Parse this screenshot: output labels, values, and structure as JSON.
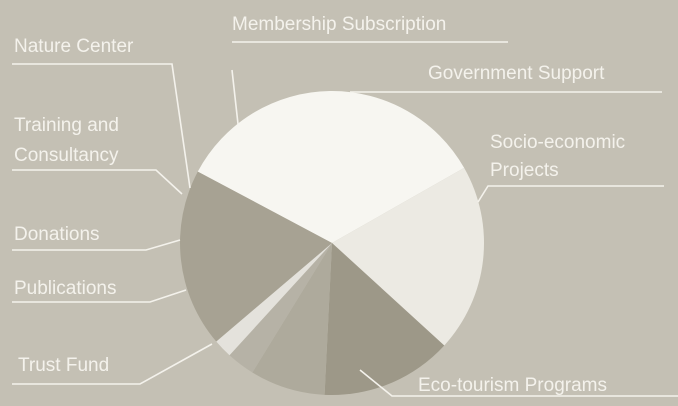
{
  "chart_data": {
    "type": "pie",
    "title": "",
    "colors": {
      "background": "#c4c0b4",
      "leader": "#f4f2ec",
      "label": "#f4f2ec"
    },
    "slices": [
      {
        "label": "Government Support",
        "value": 0,
        "color": "#ffffff"
      },
      {
        "label": "Socio-economic Projects",
        "value": 34,
        "color": "#f7f6f1"
      },
      {
        "label": "Eco-tourism Programs",
        "value": 20,
        "color": "#eceae3"
      },
      {
        "label": "Trust Fund",
        "value": 14,
        "color": "#9d9888"
      },
      {
        "label": "Publications",
        "value": 8,
        "color": "#aeaa9c"
      },
      {
        "label": "Donations",
        "value": 3,
        "color": "#b6b2a6"
      },
      {
        "label": "Training and Consultancy",
        "value": 2,
        "color": "#e4e2dc"
      },
      {
        "label": "Nature Center",
        "value": 0,
        "color": "#e4e2dc"
      },
      {
        "label": "Membership Subscription",
        "value": 19,
        "color": "#a7a293"
      }
    ],
    "labels": [
      {
        "name": "label-membership-subscription",
        "text": "Membership Subscription"
      },
      {
        "name": "label-nature-center",
        "text": "Nature Center"
      },
      {
        "name": "label-government-support",
        "text": "Government Support"
      },
      {
        "name": "label-training-and-consultancy",
        "text": "Training and Consultancy",
        "lines": [
          "Training and",
          "Consultancy"
        ]
      },
      {
        "name": "label-socio-economic-projects",
        "text": "Socio-economic Projects",
        "lines": [
          "Socio-economic",
          "Projects"
        ]
      },
      {
        "name": "label-donations",
        "text": "Donations"
      },
      {
        "name": "label-publications",
        "text": "Publications"
      },
      {
        "name": "label-trust-fund",
        "text": "Trust Fund"
      },
      {
        "name": "label-eco-tourism-programs",
        "text": "Eco-tourism Programs"
      }
    ]
  }
}
